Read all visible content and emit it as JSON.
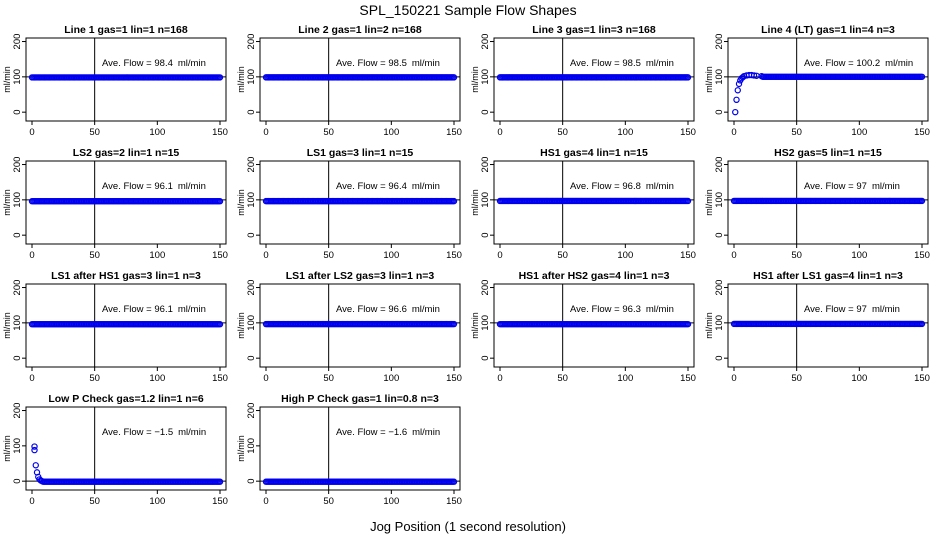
{
  "title": "SPL_150221  Sample Flow Shapes",
  "xlabel": "Jog Position (1 second resolution)",
  "ylabel": "ml/min",
  "flow_prefix": "Ave. Flow = ",
  "flow_unit": "ml/min",
  "colors": {
    "points": "#0000ee",
    "axis": "#000000"
  },
  "chart_data": [
    {
      "type": "scatter",
      "title": "Line 1 gas=1 lin=1 n=168",
      "ave_flow": "98.4",
      "xlim": [
        0,
        150
      ],
      "ylim": [
        -25,
        210
      ],
      "xticks": [
        0,
        50,
        100,
        150
      ],
      "yticks": [
        0,
        100,
        200
      ],
      "vline": 50,
      "hline": 100,
      "shape": "flat",
      "value": 98.4
    },
    {
      "type": "scatter",
      "title": "Line 2 gas=1 lin=2 n=168",
      "ave_flow": "98.5",
      "xlim": [
        0,
        150
      ],
      "ylim": [
        -25,
        210
      ],
      "xticks": [
        0,
        50,
        100,
        150
      ],
      "yticks": [
        0,
        100,
        200
      ],
      "vline": 50,
      "hline": 100,
      "shape": "flat",
      "value": 98.5
    },
    {
      "type": "scatter",
      "title": "Line 3 gas=1 lin=3 n=168",
      "ave_flow": "98.5",
      "xlim": [
        0,
        150
      ],
      "ylim": [
        -25,
        210
      ],
      "xticks": [
        0,
        50,
        100,
        150
      ],
      "yticks": [
        0,
        100,
        200
      ],
      "vline": 50,
      "hline": 100,
      "shape": "flat",
      "value": 98.5
    },
    {
      "type": "scatter",
      "title": "Line 4 (LT) gas=1 lin=4 n=3",
      "ave_flow": "100.2",
      "xlim": [
        0,
        150
      ],
      "ylim": [
        -25,
        210
      ],
      "xticks": [
        0,
        50,
        100,
        150
      ],
      "yticks": [
        0,
        100,
        200
      ],
      "vline": 50,
      "hline": 100,
      "shape": "rise",
      "value": 100.2,
      "initial_points": [
        [
          1,
          0
        ],
        [
          2,
          35
        ],
        [
          3,
          62
        ],
        [
          4,
          80
        ],
        [
          5,
          90
        ],
        [
          6,
          96
        ],
        [
          7,
          99
        ],
        [
          8,
          102
        ],
        [
          10,
          104
        ],
        [
          12,
          105
        ],
        [
          14,
          105
        ],
        [
          16,
          104
        ],
        [
          18,
          103
        ],
        [
          22,
          102
        ]
      ]
    },
    {
      "type": "scatter",
      "title": "LS2 gas=2 lin=1 n=15",
      "ave_flow": "96.1",
      "xlim": [
        0,
        150
      ],
      "ylim": [
        -25,
        210
      ],
      "xticks": [
        0,
        50,
        100,
        150
      ],
      "yticks": [
        0,
        100,
        200
      ],
      "vline": 50,
      "hline": 100,
      "shape": "flat",
      "value": 96.1
    },
    {
      "type": "scatter",
      "title": "LS1 gas=3 lin=1 n=15",
      "ave_flow": "96.4",
      "xlim": [
        0,
        150
      ],
      "ylim": [
        -25,
        210
      ],
      "xticks": [
        0,
        50,
        100,
        150
      ],
      "yticks": [
        0,
        100,
        200
      ],
      "vline": 50,
      "hline": 100,
      "shape": "flat",
      "value": 96.4
    },
    {
      "type": "scatter",
      "title": "HS1 gas=4 lin=1 n=15",
      "ave_flow": "96.8",
      "xlim": [
        0,
        150
      ],
      "ylim": [
        -25,
        210
      ],
      "xticks": [
        0,
        50,
        100,
        150
      ],
      "yticks": [
        0,
        100,
        200
      ],
      "vline": 50,
      "hline": 100,
      "shape": "flat",
      "value": 96.8
    },
    {
      "type": "scatter",
      "title": "HS2 gas=5 lin=1 n=15",
      "ave_flow": "97",
      "xlim": [
        0,
        150
      ],
      "ylim": [
        -25,
        210
      ],
      "xticks": [
        0,
        50,
        100,
        150
      ],
      "yticks": [
        0,
        100,
        200
      ],
      "vline": 50,
      "hline": 100,
      "shape": "flat",
      "value": 97
    },
    {
      "type": "scatter",
      "title": "LS1 after HS1 gas=3 lin=1 n=3",
      "ave_flow": "96.1",
      "xlim": [
        0,
        150
      ],
      "ylim": [
        -25,
        210
      ],
      "xticks": [
        0,
        50,
        100,
        150
      ],
      "yticks": [
        0,
        100,
        200
      ],
      "vline": 50,
      "hline": 100,
      "shape": "flat",
      "value": 96.1
    },
    {
      "type": "scatter",
      "title": "LS1 after LS2 gas=3 lin=1 n=3",
      "ave_flow": "96.6",
      "xlim": [
        0,
        150
      ],
      "ylim": [
        -25,
        210
      ],
      "xticks": [
        0,
        50,
        100,
        150
      ],
      "yticks": [
        0,
        100,
        200
      ],
      "vline": 50,
      "hline": 100,
      "shape": "flat",
      "value": 96.6
    },
    {
      "type": "scatter",
      "title": "HS1 after HS2 gas=4 lin=1 n=3",
      "ave_flow": "96.3",
      "xlim": [
        0,
        150
      ],
      "ylim": [
        -25,
        210
      ],
      "xticks": [
        0,
        50,
        100,
        150
      ],
      "yticks": [
        0,
        100,
        200
      ],
      "vline": 50,
      "hline": 100,
      "shape": "flat",
      "value": 96.3
    },
    {
      "type": "scatter",
      "title": "HS1 after LS1 gas=4 lin=1 n=3",
      "ave_flow": "97",
      "xlim": [
        0,
        150
      ],
      "ylim": [
        -25,
        210
      ],
      "xticks": [
        0,
        50,
        100,
        150
      ],
      "yticks": [
        0,
        100,
        200
      ],
      "vline": 50,
      "hline": 100,
      "shape": "flat",
      "value": 97
    },
    {
      "type": "scatter",
      "title": "Low P Check gas=1.2 lin=1 n=6",
      "ave_flow": "−1.5",
      "xlim": [
        0,
        150
      ],
      "ylim": [
        -25,
        210
      ],
      "xticks": [
        0,
        50,
        100,
        150
      ],
      "yticks": [
        0,
        100,
        200
      ],
      "vline": 50,
      "hline": 0,
      "shape": "fall",
      "value": -1.5,
      "initial_points": [
        [
          2,
          98
        ],
        [
          2,
          88
        ],
        [
          3,
          45
        ],
        [
          4,
          25
        ],
        [
          5,
          12
        ],
        [
          6,
          5
        ],
        [
          7,
          2
        ],
        [
          8,
          0
        ]
      ]
    },
    {
      "type": "scatter",
      "title": "High P Check gas=1 lin=0.8 n=3",
      "ave_flow": "−1.6",
      "xlim": [
        0,
        150
      ],
      "ylim": [
        -25,
        210
      ],
      "xticks": [
        0,
        50,
        100,
        150
      ],
      "yticks": [
        0,
        100,
        200
      ],
      "vline": 50,
      "hline": 0,
      "shape": "flat",
      "value": -1.6
    }
  ]
}
